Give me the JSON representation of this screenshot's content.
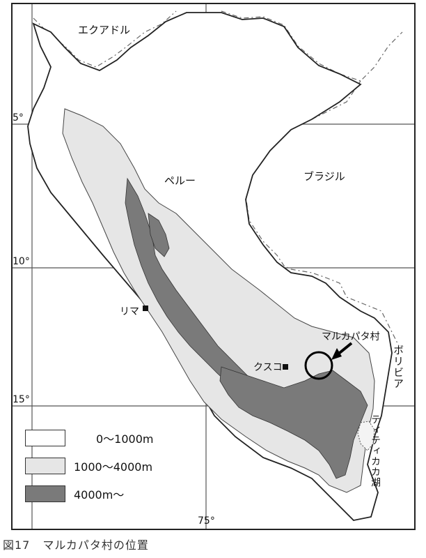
{
  "map": {
    "countries": {
      "ecuador": "エクアドル",
      "peru": "ペルー",
      "brazil": "ブラジル",
      "bolivia": "ボリビア"
    },
    "cities": {
      "lima": "リマ",
      "cusco": "クスコ"
    },
    "village": "マルカパタ村",
    "lake": "ティティカカ湖",
    "latitudes": [
      "5°",
      "10°",
      "15°"
    ],
    "longitude": "75°",
    "legend": [
      {
        "label": "0〜1000m",
        "color": "#ffffff"
      },
      {
        "label": "1000〜4000m",
        "color": "#e6e6e6"
      },
      {
        "label": "4000m〜",
        "color": "#7a7a7a"
      }
    ]
  },
  "caption": {
    "number": "図17",
    "title": "マルカパタ村の位置"
  }
}
